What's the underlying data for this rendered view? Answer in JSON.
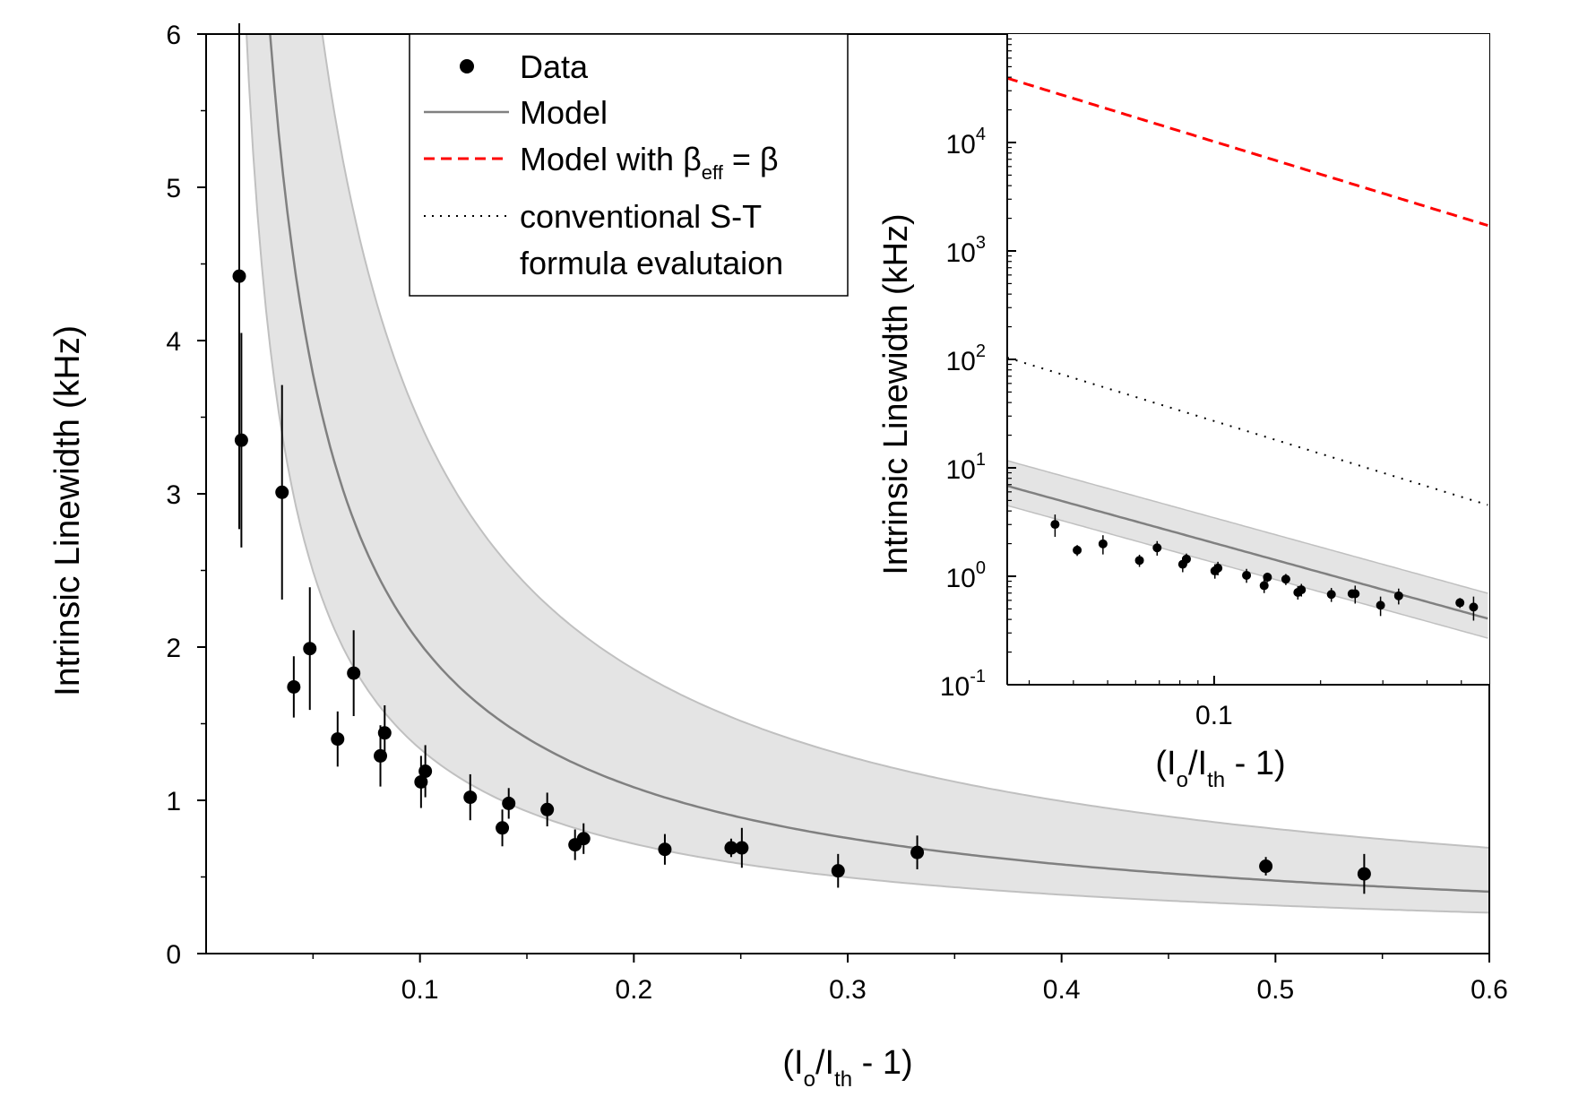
{
  "chart_data": [
    {
      "id": "main",
      "type": "scatter",
      "xlabel": {
        "main": "(I",
        "sub1": "o",
        "mid": "/I",
        "sub2": "th",
        "end": " - 1)"
      },
      "ylabel": "Intrinsic Linewidth (kHz)",
      "xlim": [
        0.0,
        0.6
      ],
      "ylim": [
        0,
        6
      ],
      "xticks": [
        0.1,
        0.2,
        0.3,
        0.4,
        0.5,
        0.6
      ],
      "xtick_labels": [
        "0.1",
        "0.2",
        "0.3",
        "0.4",
        "0.5",
        "0.6"
      ],
      "yticks": [
        0,
        1,
        2,
        3,
        4,
        5,
        6
      ],
      "ytick_labels": [
        "0",
        "1",
        "2",
        "3",
        "4",
        "5",
        "6"
      ],
      "data": {
        "x": [
          0.0155,
          0.0165,
          0.0355,
          0.041,
          0.0485,
          0.0615,
          0.069,
          0.0815,
          0.0835,
          0.1005,
          0.1025,
          0.1235,
          0.1385,
          0.1415,
          0.1595,
          0.1725,
          0.1765,
          0.2145,
          0.2455,
          0.2505,
          0.2955,
          0.3325,
          0.4955,
          0.5415
        ],
        "y": [
          4.42,
          3.35,
          3.01,
          1.74,
          1.99,
          1.4,
          1.83,
          1.29,
          1.44,
          1.12,
          1.19,
          1.02,
          0.82,
          0.98,
          0.94,
          0.71,
          0.75,
          0.68,
          0.69,
          0.69,
          0.54,
          0.66,
          0.57,
          0.52
        ],
        "err": [
          1.65,
          0.7,
          0.7,
          0.2,
          0.4,
          0.18,
          0.28,
          0.2,
          0.18,
          0.17,
          0.17,
          0.15,
          0.12,
          0.1,
          0.11,
          0.1,
          0.1,
          0.1,
          0.06,
          0.13,
          0.11,
          0.11,
          0.06,
          0.13
        ]
      },
      "model_coefficient": 0.255,
      "band_lower_factor": 0.66,
      "band_upper_factor": 1.71
    },
    {
      "id": "inset",
      "type": "line",
      "xscale": "log",
      "yscale": "log",
      "xlabel": {
        "main": "(I",
        "sub1": "o",
        "mid": "/I",
        "sub2": "th",
        "end": " - 1)"
      },
      "ylabel": "Intrinsic Linewidth (kHz)",
      "xlim": [
        0.026,
        0.6
      ],
      "ylim": [
        0.1,
        100000
      ],
      "xticks": [
        0.1
      ],
      "xtick_labels": [
        "0.1"
      ],
      "yticks_exp": [
        "-1",
        "0",
        "1",
        "2",
        "3",
        "4"
      ],
      "ytick_base": "10",
      "series": [
        {
          "name": "Model with β_eff = β",
          "coefficient": 1020,
          "color": "#ff0000",
          "style": "dashed"
        },
        {
          "name": "conventional S-T formula evalutaion",
          "coefficient": 2.7,
          "color": "#000000",
          "style": "dotted"
        }
      ]
    }
  ],
  "legend": {
    "items": [
      {
        "label": "Data",
        "marker": "dot"
      },
      {
        "label": "Model",
        "marker": "gray-line"
      },
      {
        "label": "Model with β",
        "sub": "eff",
        "tail": " = β",
        "marker": "red-dash"
      },
      {
        "label": "conventional S-T",
        "line2": "formula evalutaion",
        "marker": "dots"
      }
    ]
  },
  "colors": {
    "model": "#808080",
    "band": "#e4e4e4",
    "band_edge": "#c0c0c0",
    "data": "#000000",
    "red": "#ff0000"
  }
}
